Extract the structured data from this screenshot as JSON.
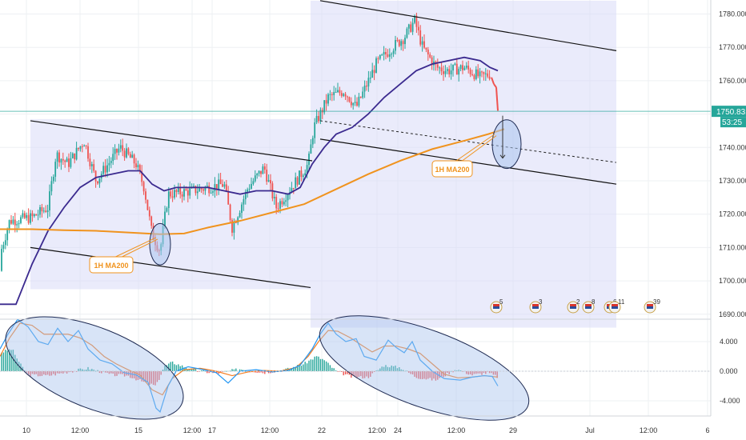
{
  "chart_data": [
    {
      "type": "candlestick",
      "panel": "price",
      "y_axis_ticks": [
        "1780.000",
        "1770.000",
        "1760.000",
        "1750.000",
        "1740.000",
        "1730.000",
        "1720.000",
        "1710.000",
        "1700.000",
        "1690.000"
      ],
      "ylim": [
        1688,
        1784
      ],
      "last_price": "1750.831",
      "countdown": "53:25",
      "annotation_label": "1H MA200",
      "event_markers": [
        "5",
        "3",
        "2",
        "8",
        "6",
        "11",
        "39"
      ],
      "series": [
        {
          "name": "",
          "kind": "ma_short",
          "color": "#3b2a8f",
          "points": [
            [
              0,
              1693
            ],
            [
              20,
              1693
            ],
            [
              40,
              1705
            ],
            [
              60,
              1715
            ],
            [
              80,
              1722
            ],
            [
              100,
              1728
            ],
            [
              120,
              1731
            ],
            [
              140,
              1732
            ],
            [
              160,
              1733
            ],
            [
              175,
              1733
            ],
            [
              190,
              1729
            ],
            [
              205,
              1727
            ],
            [
              220,
              1728
            ],
            [
              240,
              1728
            ],
            [
              260,
              1728
            ],
            [
              280,
              1727
            ],
            [
              300,
              1726
            ],
            [
              320,
              1727
            ],
            [
              340,
              1727
            ],
            [
              360,
              1726
            ],
            [
              375,
              1728
            ],
            [
              390,
              1735
            ],
            [
              405,
              1740
            ],
            [
              420,
              1744
            ],
            [
              440,
              1746
            ],
            [
              460,
              1750
            ],
            [
              480,
              1755
            ],
            [
              500,
              1759
            ],
            [
              520,
              1763
            ],
            [
              540,
              1765
            ],
            [
              560,
              1766
            ],
            [
              580,
              1767
            ],
            [
              600,
              1766
            ],
            [
              612,
              1764
            ],
            [
              622,
              1763
            ]
          ]
        },
        {
          "name": "",
          "kind": "ma200",
          "color": "#f0931e",
          "points": [
            [
              0,
              1715.5
            ],
            [
              40,
              1715.5
            ],
            [
              80,
              1715.2
            ],
            [
              120,
              1715
            ],
            [
              160,
              1714.5
            ],
            [
              200,
              1714
            ],
            [
              230,
              1714.2
            ],
            [
              260,
              1716
            ],
            [
              300,
              1718
            ],
            [
              340,
              1720.5
            ],
            [
              380,
              1723
            ],
            [
              420,
              1727.5
            ],
            [
              460,
              1732
            ],
            [
              500,
              1736
            ],
            [
              540,
              1739.5
            ],
            [
              580,
              1742
            ],
            [
              610,
              1744
            ],
            [
              630,
              1745.5
            ]
          ]
        }
      ],
      "channels": [
        {
          "upper": [
            [
              38,
              1748
            ],
            [
              390,
              1736
            ]
          ],
          "lower": [
            [
              38,
              1710
            ],
            [
              388,
              1698
            ]
          ],
          "fill": [
            38,
            1697.5,
            388,
            1748.5
          ]
        },
        {
          "upper": [
            [
              400,
              1784
            ],
            [
              770,
              1769
            ]
          ],
          "lower": [
            [
              400,
              1742.5
            ],
            [
              770,
              1729
            ]
          ],
          "fill": [
            388,
            1686,
            770,
            1784
          ]
        }
      ],
      "mid_dashed": [
        [
          400,
          1748
        ],
        [
          770,
          1735.5
        ]
      ],
      "ellipses": [
        [
          200,
          1711,
          13,
          6.2
        ],
        [
          633,
          1741,
          18,
          7.3
        ]
      ],
      "red_drop": [
        [
          614,
          1761
        ],
        [
          617,
          1759
        ],
        [
          620,
          1758
        ],
        [
          622,
          1751
        ]
      ],
      "down_arrow": [
        [
          628,
          1749.5
        ],
        [
          628,
          1736.8
        ]
      ]
    },
    {
      "type": "macd",
      "panel": "oscillator",
      "y_axis_ticks": [
        "4.000",
        "0.000",
        "-4.000"
      ],
      "ylim": [
        -7,
        7.6
      ],
      "series": [
        {
          "name": "",
          "color": "#2196f3"
        },
        {
          "name": "",
          "color": "#f57c1f"
        }
      ],
      "histogram": {
        "positive_color": "#26a69a",
        "negative_color": "#ef5350"
      }
    }
  ],
  "x_axis_ticks": [
    "10",
    "12:00",
    "15",
    "12:00",
    "17",
    "12:00",
    "22",
    "12:00",
    "24",
    "12:00",
    "29",
    "Jul",
    "12:00",
    "6"
  ]
}
